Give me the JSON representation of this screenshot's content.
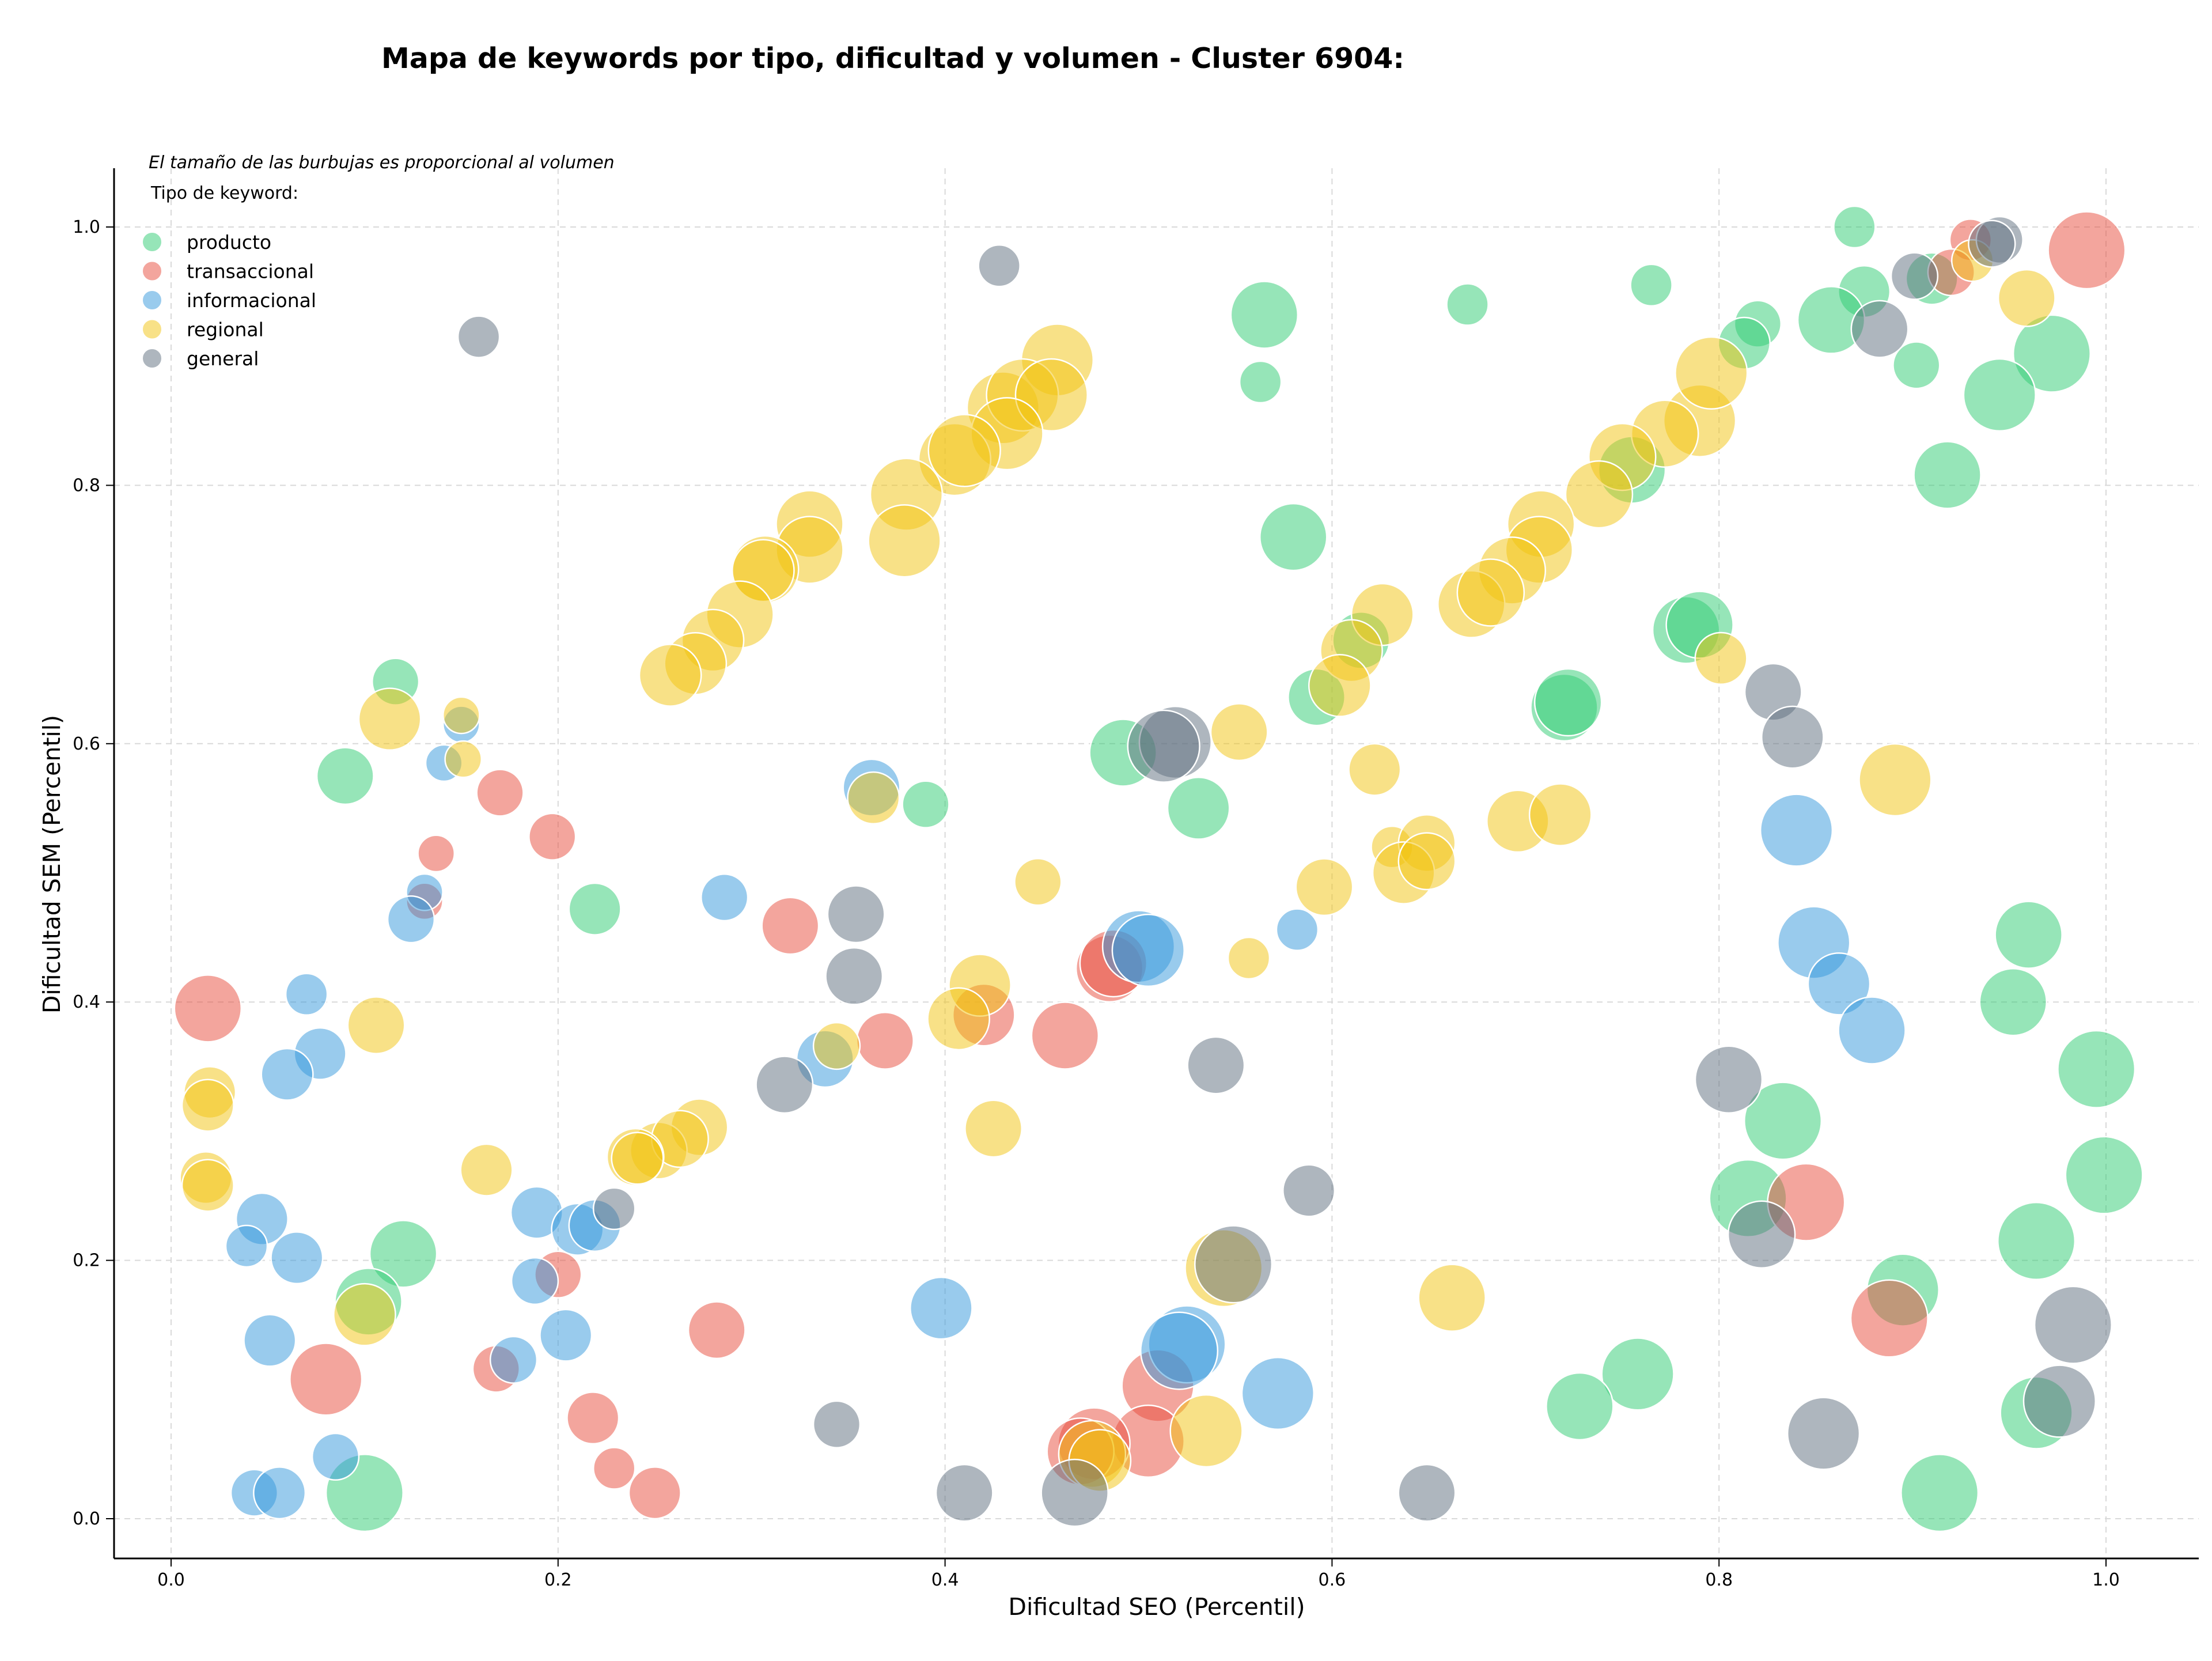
{
  "chart_data": {
    "type": "scatter",
    "title": "Mapa de keywords por tipo, dificultad y volumen - Cluster 6904:",
    "xlabel": "Dificultad SEO (Percentil)",
    "ylabel": "Dificultad SEM (Percentil)",
    "xlim": [
      -0.03,
      1.05
    ],
    "ylim": [
      -0.03,
      1.05
    ],
    "xticks": [
      "0.0",
      "0.2",
      "0.4",
      "0.6",
      "0.8",
      "1.0"
    ],
    "yticks": [
      "0.0",
      "0.2",
      "0.4",
      "0.6",
      "0.8",
      "1.0"
    ],
    "grid": true,
    "note": "El tamaño de las burbujas es proporcional al volumen",
    "legend_title": "Tipo de keyword:",
    "legend_position": "top-left",
    "size_encoding": "volumen",
    "series": [
      {
        "name": "producto",
        "color": "#2ecc71",
        "points": [
          [
            0.87,
            1.0,
            5
          ],
          [
            0.67,
            0.94,
            5
          ],
          [
            0.765,
            0.955,
            5
          ],
          [
            0.565,
            0.932,
            10
          ],
          [
            0.563,
            0.88,
            5
          ],
          [
            0.875,
            0.95,
            7
          ],
          [
            0.91,
            0.96,
            7
          ],
          [
            0.82,
            0.925,
            6
          ],
          [
            0.813,
            0.91,
            7
          ],
          [
            0.858,
            0.928,
            10
          ],
          [
            0.972,
            0.902,
            12
          ],
          [
            0.945,
            0.87,
            11
          ],
          [
            0.902,
            0.893,
            6
          ],
          [
            0.918,
            0.808,
            10
          ],
          [
            0.58,
            0.76,
            10
          ],
          [
            0.755,
            0.812,
            10
          ],
          [
            0.783,
            0.688,
            10
          ],
          [
            0.79,
            0.692,
            10
          ],
          [
            0.72,
            0.628,
            10
          ],
          [
            0.722,
            0.632,
            10
          ],
          [
            0.615,
            0.68,
            8
          ],
          [
            0.592,
            0.636,
            8
          ],
          [
            0.492,
            0.593,
            10
          ],
          [
            0.531,
            0.55,
            9
          ],
          [
            0.39,
            0.553,
            6
          ],
          [
            0.09,
            0.575,
            8
          ],
          [
            0.116,
            0.648,
            6
          ],
          [
            0.219,
            0.472,
            7
          ],
          [
            0.12,
            0.205,
            10
          ],
          [
            0.102,
            0.168,
            10
          ],
          [
            0.1,
            0.02,
            12
          ],
          [
            0.96,
            0.452,
            10
          ],
          [
            0.952,
            0.4,
            10
          ],
          [
            0.995,
            0.348,
            12
          ],
          [
            0.833,
            0.308,
            12
          ],
          [
            0.815,
            0.248,
            12
          ],
          [
            0.999,
            0.266,
            12
          ],
          [
            0.964,
            0.215,
            12
          ],
          [
            0.895,
            0.177,
            11
          ],
          [
            0.758,
            0.112,
            11
          ],
          [
            0.728,
            0.087,
            10
          ],
          [
            0.964,
            0.082,
            11
          ],
          [
            0.914,
            0.02,
            12
          ]
        ]
      },
      {
        "name": "transaccional",
        "color": "#e74c3c",
        "points": [
          [
            0.99,
            0.982,
            12
          ],
          [
            0.93,
            0.99,
            5
          ],
          [
            0.92,
            0.965,
            6
          ],
          [
            0.17,
            0.562,
            6
          ],
          [
            0.197,
            0.528,
            6
          ],
          [
            0.137,
            0.515,
            4
          ],
          [
            0.131,
            0.478,
            4
          ],
          [
            0.32,
            0.459,
            8
          ],
          [
            0.369,
            0.37,
            8
          ],
          [
            0.462,
            0.374,
            10
          ],
          [
            0.485,
            0.426,
            10
          ],
          [
            0.487,
            0.43,
            10
          ],
          [
            0.42,
            0.39,
            9
          ],
          [
            0.019,
            0.395,
            10
          ],
          [
            0.2,
            0.189,
            6
          ],
          [
            0.282,
            0.146,
            8
          ],
          [
            0.168,
            0.116,
            6
          ],
          [
            0.08,
            0.108,
            11
          ],
          [
            0.218,
            0.078,
            7
          ],
          [
            0.229,
            0.039,
            5
          ],
          [
            0.25,
            0.02,
            7
          ],
          [
            0.51,
            0.103,
            11
          ],
          [
            0.505,
            0.06,
            11
          ],
          [
            0.477,
            0.058,
            11
          ],
          [
            0.47,
            0.052,
            10
          ],
          [
            0.845,
            0.245,
            12
          ],
          [
            0.888,
            0.155,
            12
          ]
        ]
      },
      {
        "name": "informacional",
        "color": "#3498db",
        "points": [
          [
            0.15,
            0.615,
            4
          ],
          [
            0.141,
            0.585,
            4
          ],
          [
            0.131,
            0.485,
            4
          ],
          [
            0.124,
            0.464,
            6
          ],
          [
            0.07,
            0.406,
            5
          ],
          [
            0.286,
            0.481,
            6
          ],
          [
            0.362,
            0.566,
            8
          ],
          [
            0.077,
            0.36,
            7
          ],
          [
            0.06,
            0.344,
            7
          ],
          [
            0.338,
            0.356,
            8
          ],
          [
            0.5,
            0.443,
            11
          ],
          [
            0.505,
            0.44,
            11
          ],
          [
            0.582,
            0.456,
            5
          ],
          [
            0.84,
            0.533,
            11
          ],
          [
            0.849,
            0.446,
            11
          ],
          [
            0.862,
            0.414,
            9
          ],
          [
            0.879,
            0.378,
            10
          ],
          [
            0.047,
            0.232,
            7
          ],
          [
            0.039,
            0.211,
            5
          ],
          [
            0.065,
            0.202,
            7
          ],
          [
            0.189,
            0.237,
            7
          ],
          [
            0.21,
            0.224,
            7
          ],
          [
            0.219,
            0.227,
            7
          ],
          [
            0.188,
            0.184,
            6
          ],
          [
            0.177,
            0.123,
            6
          ],
          [
            0.204,
            0.142,
            7
          ],
          [
            0.051,
            0.138,
            7
          ],
          [
            0.398,
            0.163,
            9
          ],
          [
            0.525,
            0.135,
            12
          ],
          [
            0.521,
            0.13,
            12
          ],
          [
            0.572,
            0.097,
            11
          ],
          [
            0.085,
            0.048,
            6
          ],
          [
            0.043,
            0.02,
            6
          ],
          [
            0.056,
            0.02,
            7
          ]
        ]
      },
      {
        "name": "regional",
        "color": "#f1c40f",
        "points": [
          [
            0.458,
            0.897,
            11
          ],
          [
            0.43,
            0.86,
            11
          ],
          [
            0.44,
            0.87,
            11
          ],
          [
            0.455,
            0.87,
            11
          ],
          [
            0.432,
            0.84,
            11
          ],
          [
            0.405,
            0.82,
            11
          ],
          [
            0.41,
            0.827,
            11
          ],
          [
            0.38,
            0.793,
            11
          ],
          [
            0.379,
            0.757,
            11
          ],
          [
            0.33,
            0.77,
            10
          ],
          [
            0.33,
            0.75,
            10
          ],
          [
            0.307,
            0.735,
            10
          ],
          [
            0.306,
            0.734,
            9
          ],
          [
            0.294,
            0.7,
            10
          ],
          [
            0.28,
            0.68,
            9
          ],
          [
            0.271,
            0.662,
            9
          ],
          [
            0.258,
            0.653,
            9
          ],
          [
            0.113,
            0.619,
            9
          ],
          [
            0.15,
            0.622,
            4
          ],
          [
            0.151,
            0.588,
            4
          ],
          [
            0.363,
            0.558,
            7
          ],
          [
            0.959,
            0.945,
            8
          ],
          [
            0.931,
            0.974,
            5
          ],
          [
            0.79,
            0.85,
            11
          ],
          [
            0.796,
            0.887,
            11
          ],
          [
            0.772,
            0.84,
            10
          ],
          [
            0.75,
            0.822,
            10
          ],
          [
            0.738,
            0.793,
            10
          ],
          [
            0.708,
            0.77,
            10
          ],
          [
            0.707,
            0.75,
            10
          ],
          [
            0.693,
            0.734,
            10
          ],
          [
            0.672,
            0.708,
            10
          ],
          [
            0.682,
            0.717,
            10
          ],
          [
            0.626,
            0.7,
            9
          ],
          [
            0.61,
            0.672,
            9
          ],
          [
            0.604,
            0.645,
            9
          ],
          [
            0.801,
            0.666,
            7
          ],
          [
            0.552,
            0.609,
            8
          ],
          [
            0.622,
            0.58,
            7
          ],
          [
            0.891,
            0.572,
            11
          ],
          [
            0.448,
            0.493,
            6
          ],
          [
            0.596,
            0.489,
            8
          ],
          [
            0.631,
            0.52,
            5
          ],
          [
            0.649,
            0.523,
            8
          ],
          [
            0.637,
            0.5,
            9
          ],
          [
            0.649,
            0.509,
            8
          ],
          [
            0.696,
            0.54,
            9
          ],
          [
            0.718,
            0.545,
            9
          ],
          [
            0.557,
            0.434,
            5
          ],
          [
            0.418,
            0.413,
            9
          ],
          [
            0.407,
            0.387,
            9
          ],
          [
            0.344,
            0.366,
            6
          ],
          [
            0.425,
            0.302,
            8
          ],
          [
            0.106,
            0.382,
            8
          ],
          [
            0.02,
            0.33,
            7
          ],
          [
            0.019,
            0.32,
            7
          ],
          [
            0.018,
            0.264,
            7
          ],
          [
            0.019,
            0.258,
            7
          ],
          [
            0.163,
            0.27,
            7
          ],
          [
            0.273,
            0.303,
            8
          ],
          [
            0.252,
            0.285,
            8
          ],
          [
            0.263,
            0.294,
            8
          ],
          [
            0.24,
            0.28,
            8
          ],
          [
            0.241,
            0.279,
            7
          ],
          [
            0.544,
            0.194,
            12
          ],
          [
            0.1,
            0.158,
            9
          ],
          [
            0.662,
            0.171,
            10
          ],
          [
            0.535,
            0.068,
            11
          ],
          [
            0.476,
            0.05,
            10
          ],
          [
            0.48,
            0.045,
            9
          ]
        ]
      },
      {
        "name": "general",
        "color": "#5d6d7e",
        "points": [
          [
            0.428,
            0.97,
            5
          ],
          [
            0.159,
            0.915,
            5
          ],
          [
            0.945,
            0.99,
            6
          ],
          [
            0.941,
            0.987,
            6
          ],
          [
            0.901,
            0.962,
            6
          ],
          [
            0.883,
            0.921,
            8
          ],
          [
            0.828,
            0.64,
            8
          ],
          [
            0.838,
            0.605,
            9
          ],
          [
            0.519,
            0.601,
            11
          ],
          [
            0.513,
            0.598,
            11
          ],
          [
            0.354,
            0.468,
            8
          ],
          [
            0.353,
            0.42,
            8
          ],
          [
            0.317,
            0.336,
            8
          ],
          [
            0.54,
            0.351,
            8
          ],
          [
            0.805,
            0.34,
            10
          ],
          [
            0.229,
            0.24,
            5
          ],
          [
            0.588,
            0.254,
            7
          ],
          [
            0.822,
            0.22,
            10
          ],
          [
            0.549,
            0.197,
            12
          ],
          [
            0.344,
            0.073,
            6
          ],
          [
            0.41,
            0.02,
            8
          ],
          [
            0.467,
            0.02,
            10
          ],
          [
            0.649,
            0.02,
            8
          ],
          [
            0.854,
            0.066,
            11
          ],
          [
            0.976,
            0.091,
            11
          ],
          [
            0.983,
            0.15,
            12
          ]
        ]
      }
    ]
  }
}
